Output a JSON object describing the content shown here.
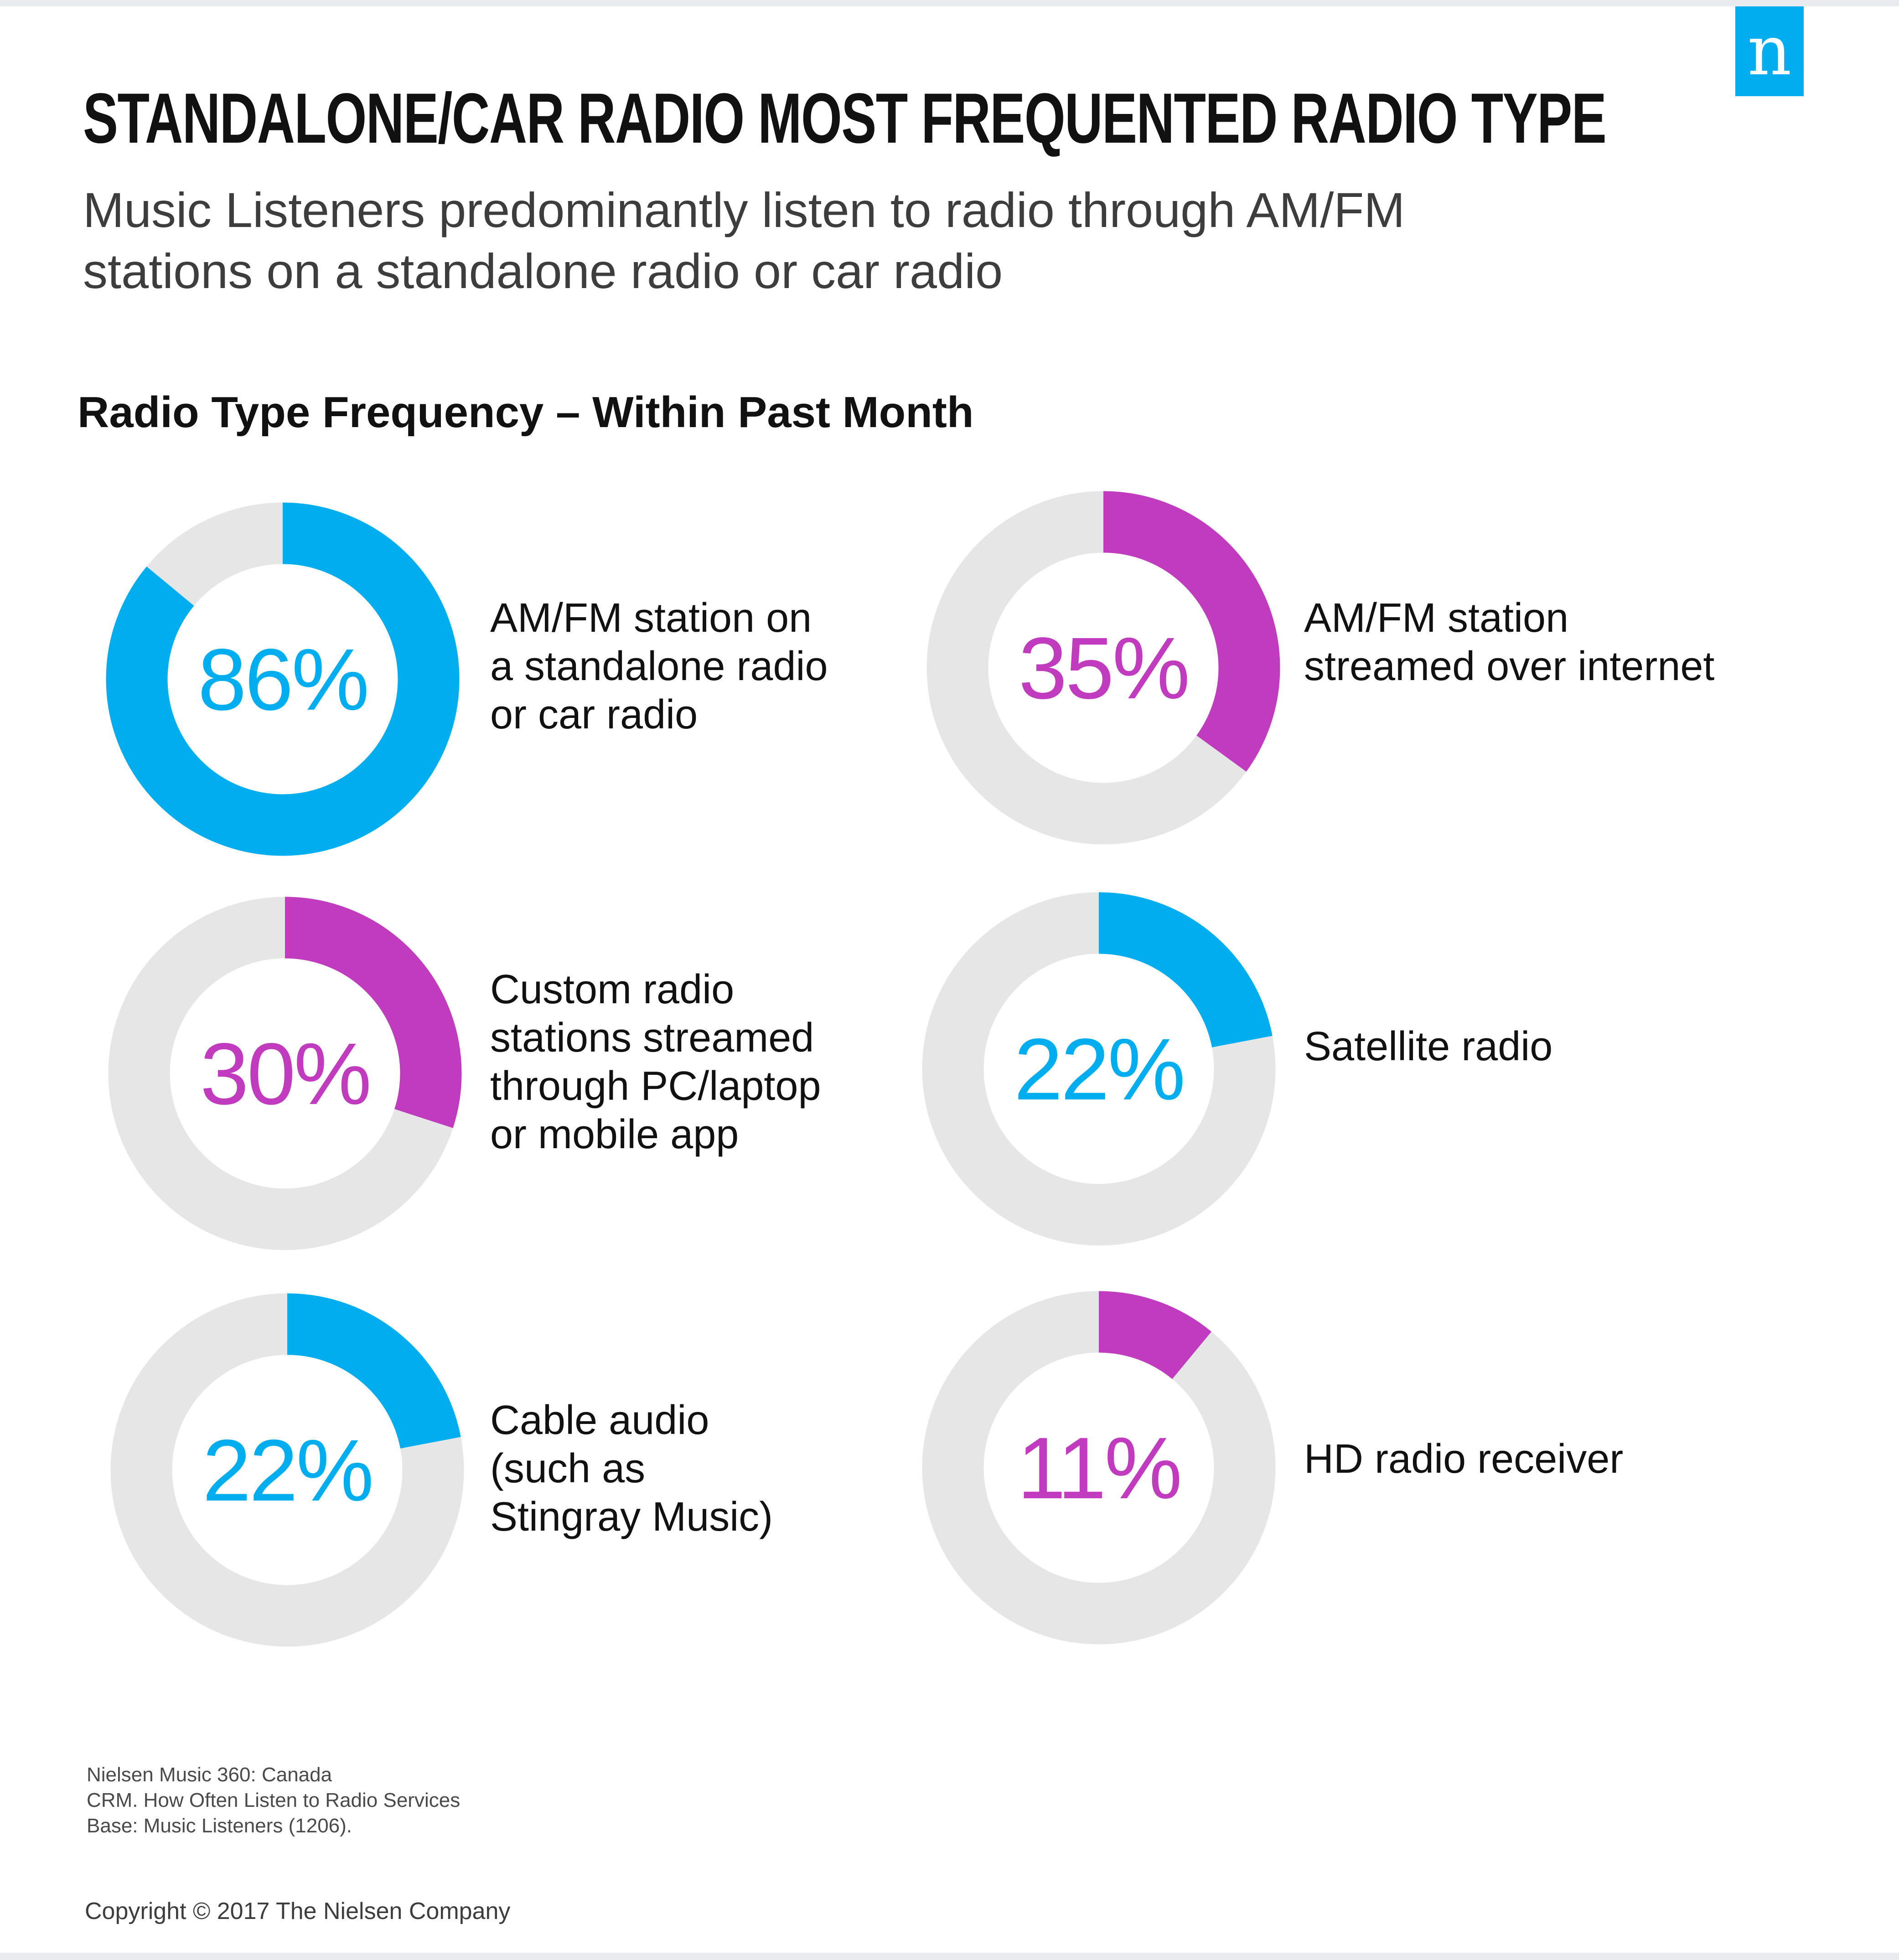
{
  "header": {
    "title": "STANDALONE/CAR RADIO MOST FREQUENTED RADIO TYPE",
    "subtitle_lines": [
      "Music Listeners predominantly listen to radio through AM/FM",
      "stations on a standalone radio or car radio"
    ],
    "logo_letter": "n"
  },
  "colors": {
    "blue": "#00aeef",
    "purple": "#c13bbf",
    "track": "#e6e6e6",
    "logo_bg": "#00aeef"
  },
  "chart_data": {
    "type": "donut",
    "title": "Radio Type Frequency – Within Past Month",
    "items": [
      {
        "value": 86,
        "label": "86%",
        "label_lines": [
          "AM/FM station on",
          "a standalone radio",
          "or car radio"
        ],
        "color": "#00aeef"
      },
      {
        "value": 35,
        "label": "35%",
        "label_lines": [
          "AM/FM station",
          "streamed over internet"
        ],
        "color": "#c13bbf"
      },
      {
        "value": 30,
        "label": "30%",
        "label_lines": [
          "Custom radio",
          "stations streamed",
          "through PC/laptop",
          "or mobile app"
        ],
        "color": "#c13bbf"
      },
      {
        "value": 22,
        "label": "22%",
        "label_lines": [
          "Satellite radio"
        ],
        "color": "#00aeef"
      },
      {
        "value": 22,
        "label": "22%",
        "label_lines": [
          "Cable audio",
          "(such as",
          "Stingray Music)"
        ],
        "color": "#00aeef"
      },
      {
        "value": 11,
        "label": "11%",
        "label_lines": [
          "HD radio receiver"
        ],
        "color": "#c13bbf"
      }
    ]
  },
  "footer": {
    "source_lines": [
      "Nielsen Music 360: Canada",
      "CRM. How Often Listen to Radio Services",
      "Base: Music Listeners (1206)."
    ],
    "copyright": "Copyright © 2017 The Nielsen Company"
  }
}
